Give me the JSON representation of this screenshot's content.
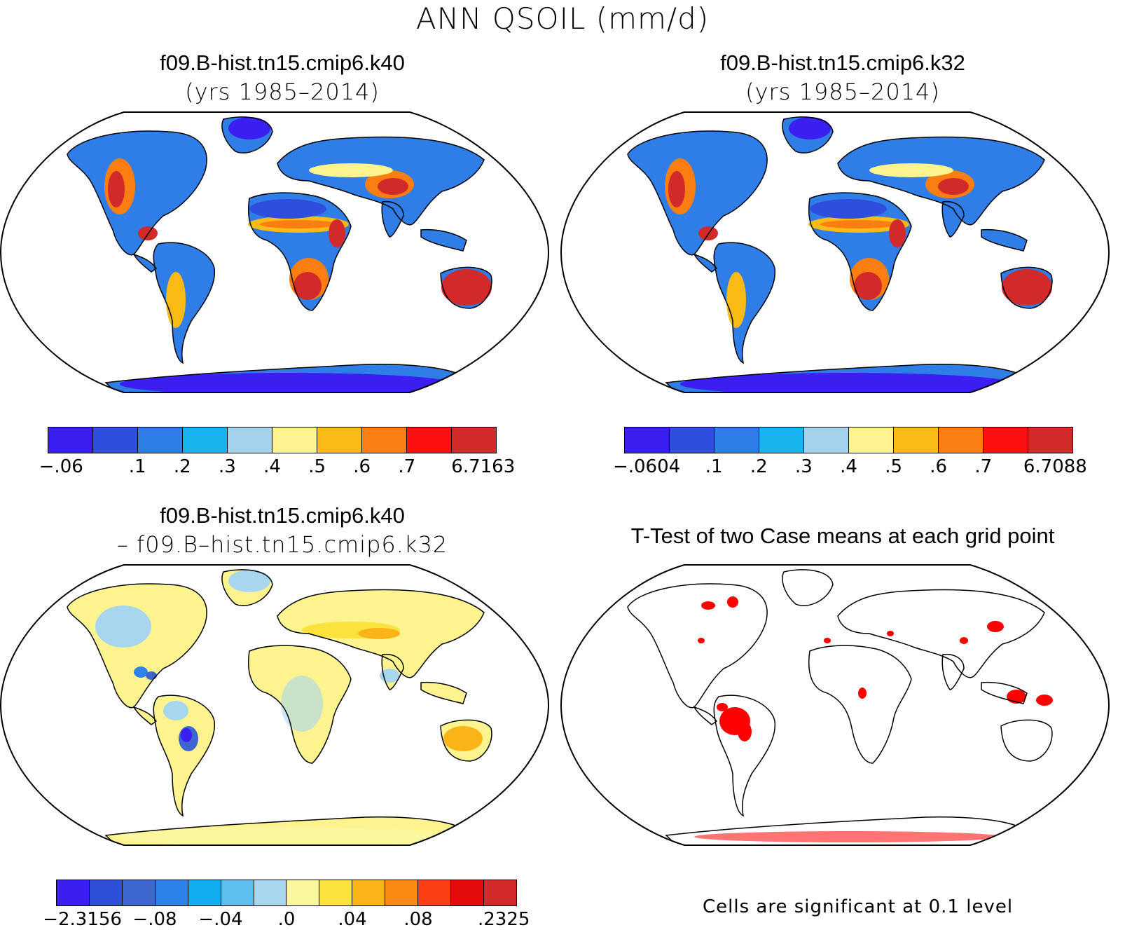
{
  "figure": {
    "main_title": "ANN QSOIL (mm/d)"
  },
  "panels": {
    "top_left": {
      "title": "f09.B-hist.tn15.cmip6.k40",
      "subtitle": "(yrs 1985–2014)"
    },
    "top_right": {
      "title": "f09.B-hist.tn15.cmip6.k32",
      "subtitle": "(yrs 1985–2014)"
    },
    "bottom_left": {
      "title": "f09.B-hist.tn15.cmip6.k40",
      "subtitle": "– f09.B–hist.tn15.cmip6.k32"
    },
    "bottom_right": {
      "title": "T-Test of two Case means at each grid point",
      "note": "Cells are significant at 0.1 level"
    }
  },
  "colorbars": {
    "cb1": {
      "colors": [
        "#3b1ef0",
        "#2f4ede",
        "#2f7ee8",
        "#17b4ef",
        "#a3d3ec",
        "#fdf48f",
        "#fbbb17",
        "#fa7e12",
        "#fd1010",
        "#d22a2a"
      ],
      "labels": [
        "−.06",
        ".1",
        ".2",
        ".3",
        ".4",
        ".5",
        ".6",
        ".7",
        "6.7163"
      ]
    },
    "cb2": {
      "colors": [
        "#3b1ef0",
        "#2f4ede",
        "#2f7ee8",
        "#17b4ef",
        "#a3d3ec",
        "#fdf48f",
        "#fbbb17",
        "#fa7e12",
        "#fd1010",
        "#d22a2a"
      ],
      "labels": [
        "−.0604",
        ".1",
        ".2",
        ".3",
        ".4",
        ".5",
        ".6",
        ".7",
        "6.7088"
      ]
    },
    "cb3": {
      "colors": [
        "#3b1ef0",
        "#2e4ed8",
        "#3d66cf",
        "#2c83ea",
        "#12adf0",
        "#5cbfee",
        "#a8d6ee",
        "#fbf79e",
        "#fbe23d",
        "#fbb417",
        "#fa8a14",
        "#fb3e14",
        "#e60c0c",
        "#d22a2a"
      ],
      "labels": [
        "−2.3156",
        "−.08",
        "−.04",
        ".0",
        ".04",
        ".08",
        ".2325"
      ]
    }
  }
}
